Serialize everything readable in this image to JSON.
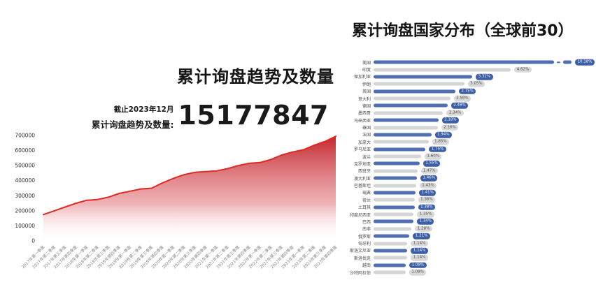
{
  "page": {
    "background": "#ffffff"
  },
  "left_chart": {
    "title": "累计询盘趋势及数量",
    "as_of": "截止2023年12月",
    "stat_label": "累计询盘趋势及数量:",
    "stat_value": "15177847"
  },
  "right_chart": {
    "title": "累计询盘国家分布（全球前30）"
  },
  "colors": {
    "area_line": "#de2a20",
    "area_fill_top": "#c2252b",
    "area_fill_bottom": "#ffffff",
    "bar_blue": "#4f6fb2",
    "pill_blue": "#3d5fa6",
    "bar_gray": "#d5d5d5",
    "pill_gray": "#d8d8d8"
  },
  "chart_data": [
    {
      "type": "area",
      "title": "累计询盘趋势及数量",
      "xlabel": "",
      "ylabel": "",
      "ylim": [
        0,
        700000
      ],
      "yticks": [
        700000,
        600000,
        500000,
        400000,
        300000,
        200000,
        100000,
        0
      ],
      "grid": false,
      "legend": "none",
      "x": [
        "2017年第一季度",
        "2017年第二季度",
        "2017年第三季度",
        "2017年第四季度",
        "2018年第一季度",
        "2018年第二季度",
        "2018年第三季度",
        "2018年第四季度",
        "2019年第一季度",
        "2019年第二季度",
        "2019年第三季度",
        "2019年第四季度",
        "2020年第一季度",
        "2020年第二季度",
        "2020年第三季度",
        "2020年第四季度",
        "2021年第一季度",
        "2021年第二季度",
        "2021年第三季度",
        "2021年第四季度",
        "2022年第一季度",
        "2022年第二季度",
        "2022年第三季度",
        "2022年第四季度",
        "2023年第一季度",
        "2023年第二季度",
        "2023年第三季度",
        "2023年第四季度"
      ],
      "values": [
        175000,
        200000,
        225000,
        250000,
        270000,
        275000,
        290000,
        315000,
        330000,
        345000,
        350000,
        385000,
        415000,
        440000,
        455000,
        460000,
        465000,
        480000,
        500000,
        515000,
        520000,
        540000,
        570000,
        590000,
        605000,
        635000,
        660000,
        695000
      ]
    },
    {
      "type": "bar",
      "orientation": "horizontal",
      "title": "累计询盘国家分布（全球前30）",
      "broken_bar_index": 0,
      "color_pattern": "alternating blue/gray",
      "categories": [
        "美国",
        "印度",
        "保加利亚",
        "伊朗",
        "英国",
        "意大利",
        "德国",
        "墨西哥",
        "马来西亚",
        "泰国",
        "法国",
        "加拿大",
        "罗马尼亚",
        "波兰",
        "克罗地亚",
        "西班牙",
        "澳大利亚",
        "巴基斯坦",
        "瑞典",
        "荷兰",
        "土耳其",
        "印度尼西亚",
        "巴西",
        "南非",
        "俄罗斯",
        "匈牙利",
        "斯洛文尼亚",
        "斯洛伐克",
        "越南",
        "沙特阿拉伯"
      ],
      "values": [
        10.18,
        4.62,
        3.32,
        3.05,
        2.75,
        2.58,
        2.49,
        2.34,
        2.18,
        2.16,
        1.94,
        1.85,
        1.75,
        1.6,
        1.55,
        1.47,
        1.46,
        1.43,
        1.41,
        1.38,
        1.38,
        1.35,
        1.34,
        1.28,
        1.21,
        1.14,
        1.14,
        1.14,
        1.09,
        1.08
      ],
      "labels": [
        "10.18%",
        "4.62%",
        "3.32%",
        "3.05%",
        "2.75%",
        "2.58%",
        "2.49%",
        "2.34%",
        "2.18%",
        "2.16%",
        "1.94%",
        "1.85%",
        "1.75%",
        "1.60%",
        "1.55%",
        "1.47%",
        "1.46%",
        "1.43%",
        "1.41%",
        "1.38%",
        "1.38%",
        "1.35%",
        "1.34%",
        "1.28%",
        "1.21%",
        "1.14%",
        "1.14%",
        "1.14%",
        "1.09%",
        "1.08%"
      ]
    }
  ]
}
